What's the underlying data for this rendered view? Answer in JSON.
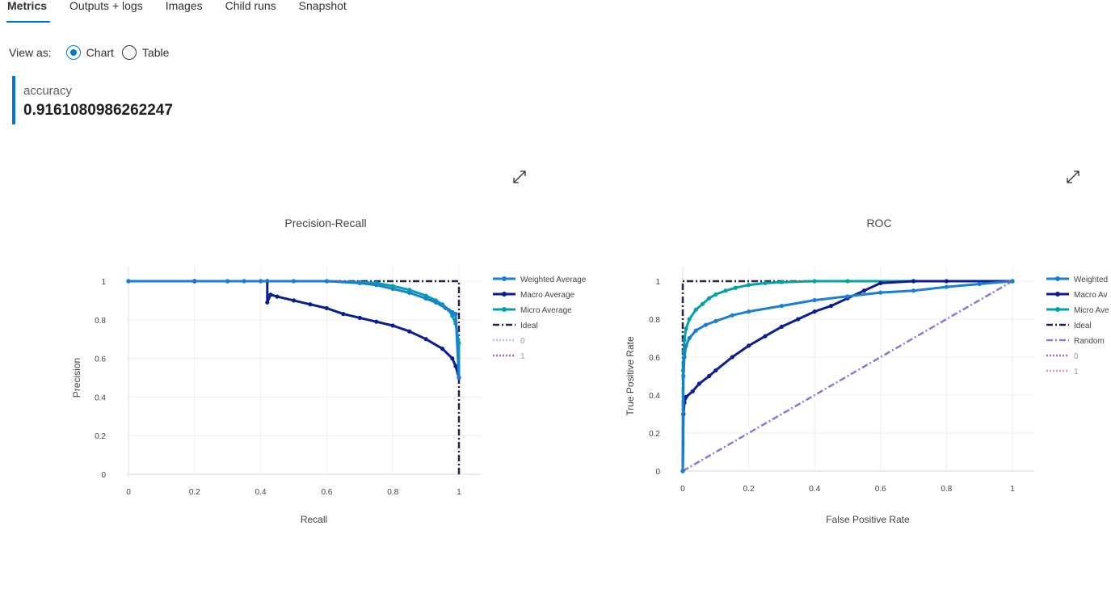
{
  "tabs": [
    {
      "label": "Metrics",
      "active": true
    },
    {
      "label": "Outputs + logs",
      "active": false
    },
    {
      "label": "Images",
      "active": false
    },
    {
      "label": "Child runs",
      "active": false
    },
    {
      "label": "Snapshot",
      "active": false
    }
  ],
  "view_as": {
    "label": "View as:",
    "options": [
      "Chart",
      "Table"
    ],
    "selected": "Chart"
  },
  "metric": {
    "name": "accuracy",
    "value": "0.9161080986262247"
  },
  "icons": {
    "expand": "expand-icon"
  },
  "chart_data": [
    {
      "type": "line",
      "title": "Precision-Recall",
      "xlabel": "Recall",
      "ylabel": "Precision",
      "xlim": [
        0,
        1
      ],
      "ylim": [
        0,
        1
      ],
      "xticks": [
        "0",
        "0.2",
        "0.4",
        "0.6",
        "0.8",
        "1"
      ],
      "yticks": [
        "0",
        "0.2",
        "0.4",
        "0.6",
        "0.8",
        "1"
      ],
      "grid": true,
      "legend_position": "right",
      "series": [
        {
          "name": "Weighted Average",
          "color": "#1a7fd4",
          "style": "line-markers",
          "x": [
            0,
            0.3,
            0.35,
            0.4,
            0.5,
            0.6,
            0.7,
            0.75,
            0.8,
            0.85,
            0.9,
            0.93,
            0.96,
            0.98,
            0.99,
            1.0
          ],
          "y": [
            1,
            1,
            1,
            1,
            1,
            1,
            0.99,
            0.98,
            0.96,
            0.94,
            0.91,
            0.89,
            0.86,
            0.84,
            0.83,
            0.5
          ]
        },
        {
          "name": "Macro Average",
          "color": "#0a1f8f",
          "style": "line-markers",
          "x": [
            0,
            0.2,
            0.3,
            0.35,
            0.4,
            0.42,
            0.42,
            0.43,
            0.45,
            0.5,
            0.55,
            0.6,
            0.65,
            0.7,
            0.75,
            0.8,
            0.85,
            0.9,
            0.95,
            0.98,
            0.99,
            1.0
          ],
          "y": [
            1,
            1,
            1,
            1,
            1,
            1,
            0.89,
            0.93,
            0.92,
            0.9,
            0.88,
            0.86,
            0.83,
            0.81,
            0.79,
            0.77,
            0.74,
            0.7,
            0.65,
            0.6,
            0.56,
            0.5
          ]
        },
        {
          "name": "Micro Average",
          "color": "#00a2a8",
          "style": "line-markers",
          "x": [
            0,
            0.3,
            0.5,
            0.6,
            0.7,
            0.75,
            0.8,
            0.85,
            0.9,
            0.93,
            0.95,
            0.97,
            0.98,
            0.99,
            1.0,
            1.0
          ],
          "y": [
            1,
            1,
            1,
            1,
            0.995,
            0.99,
            0.975,
            0.955,
            0.925,
            0.9,
            0.88,
            0.85,
            0.82,
            0.78,
            0.68,
            0.5
          ]
        },
        {
          "name": "Ideal",
          "color": "#2c1f4a",
          "style": "dashdot",
          "x": [
            0,
            1,
            1
          ],
          "y": [
            1,
            1,
            0
          ]
        },
        {
          "name": "0",
          "color": "#c5b8ec",
          "style": "dotted",
          "x": [],
          "y": []
        },
        {
          "name": "1",
          "color": "#9b6fa8",
          "style": "dotted",
          "x": [],
          "y": []
        }
      ]
    },
    {
      "type": "line",
      "title": "ROC",
      "xlabel": "False Positive Rate",
      "ylabel": "True Positive Rate",
      "xlim": [
        0,
        1
      ],
      "ylim": [
        0,
        1
      ],
      "xticks": [
        "0",
        "0.2",
        "0.4",
        "0.6",
        "0.8",
        "1"
      ],
      "yticks": [
        "0",
        "0.2",
        "0.4",
        "0.6",
        "0.8",
        "1"
      ],
      "grid": true,
      "legend_position": "right",
      "series": [
        {
          "name": "Weighted Average",
          "legend_label": "Weighted",
          "color": "#1a7fd4",
          "style": "line-markers",
          "x": [
            0,
            0.002,
            0.005,
            0.01,
            0.02,
            0.04,
            0.07,
            0.1,
            0.15,
            0.2,
            0.3,
            0.4,
            0.5,
            0.6,
            0.7,
            0.8,
            0.9,
            1.0
          ],
          "y": [
            0,
            0.5,
            0.6,
            0.66,
            0.7,
            0.74,
            0.77,
            0.79,
            0.82,
            0.84,
            0.87,
            0.9,
            0.92,
            0.94,
            0.95,
            0.97,
            0.985,
            1
          ]
        },
        {
          "name": "Macro Average",
          "legend_label": "Macro Av",
          "color": "#0a1f8f",
          "style": "line-markers",
          "x": [
            0,
            0.002,
            0.005,
            0.01,
            0.03,
            0.05,
            0.08,
            0.1,
            0.15,
            0.2,
            0.25,
            0.3,
            0.35,
            0.4,
            0.45,
            0.5,
            0.55,
            0.6,
            0.7,
            0.8,
            1.0
          ],
          "y": [
            0,
            0.3,
            0.36,
            0.39,
            0.42,
            0.46,
            0.5,
            0.53,
            0.6,
            0.66,
            0.71,
            0.76,
            0.8,
            0.84,
            0.87,
            0.91,
            0.95,
            0.99,
            1,
            1,
            1
          ]
        },
        {
          "name": "Micro Average",
          "legend_label": "Micro Ave",
          "color": "#00a2a8",
          "style": "line-markers",
          "x": [
            0,
            0.001,
            0.003,
            0.005,
            0.01,
            0.02,
            0.04,
            0.06,
            0.08,
            0.1,
            0.13,
            0.16,
            0.2,
            0.25,
            0.3,
            0.4,
            0.5,
            0.7,
            1.0
          ],
          "y": [
            0,
            0.53,
            0.63,
            0.69,
            0.75,
            0.8,
            0.85,
            0.88,
            0.91,
            0.93,
            0.95,
            0.965,
            0.98,
            0.99,
            0.995,
            1,
            1,
            1,
            1
          ]
        },
        {
          "name": "Ideal",
          "color": "#2c1f4a",
          "style": "dashdot",
          "x": [
            0,
            0,
            1
          ],
          "y": [
            0,
            1,
            1
          ]
        },
        {
          "name": "Random",
          "color": "#8a7ad6",
          "style": "dashdot",
          "x": [
            0,
            1
          ],
          "y": [
            0,
            1
          ]
        },
        {
          "name": "0",
          "color": "#9b6fa8",
          "style": "dotted",
          "x": [],
          "y": []
        },
        {
          "name": "1",
          "color": "#f08fc0",
          "style": "dotted",
          "x": [],
          "y": []
        }
      ]
    }
  ]
}
